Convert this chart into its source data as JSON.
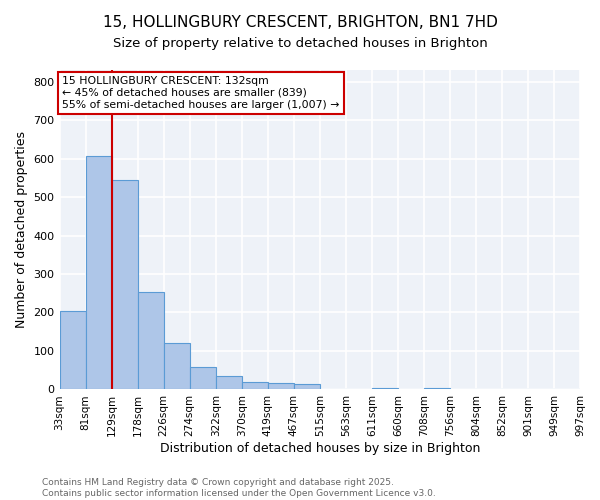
{
  "title1": "15, HOLLINGBURY CRESCENT, BRIGHTON, BN1 7HD",
  "title2": "Size of property relative to detached houses in Brighton",
  "xlabel": "Distribution of detached houses by size in Brighton",
  "ylabel": "Number of detached properties",
  "bar_values": [
    203,
    606,
    545,
    252,
    120,
    58,
    35,
    20,
    17,
    13,
    0,
    0,
    5,
    0,
    3,
    0,
    0,
    0,
    0,
    0
  ],
  "bar_labels": [
    "33sqm",
    "81sqm",
    "129sqm",
    "178sqm",
    "226sqm",
    "274sqm",
    "322sqm",
    "370sqm",
    "419sqm",
    "467sqm",
    "515sqm",
    "563sqm",
    "611sqm",
    "660sqm",
    "708sqm",
    "756sqm",
    "804sqm",
    "852sqm",
    "901sqm",
    "949sqm",
    "997sqm"
  ],
  "bar_color": "#aec6e8",
  "bar_edge_color": "#5b9bd5",
  "bg_color": "#eef2f8",
  "grid_color": "#ffffff",
  "vline_color": "#cc0000",
  "annotation_text": "15 HOLLINGBURY CRESCENT: 132sqm\n← 45% of detached houses are smaller (839)\n55% of semi-detached houses are larger (1,007) →",
  "annotation_box_color": "#cc0000",
  "ylim": [
    0,
    830
  ],
  "yticks": [
    0,
    100,
    200,
    300,
    400,
    500,
    600,
    700,
    800
  ],
  "footer1": "Contains HM Land Registry data © Crown copyright and database right 2025.",
  "footer2": "Contains public sector information licensed under the Open Government Licence v3.0."
}
